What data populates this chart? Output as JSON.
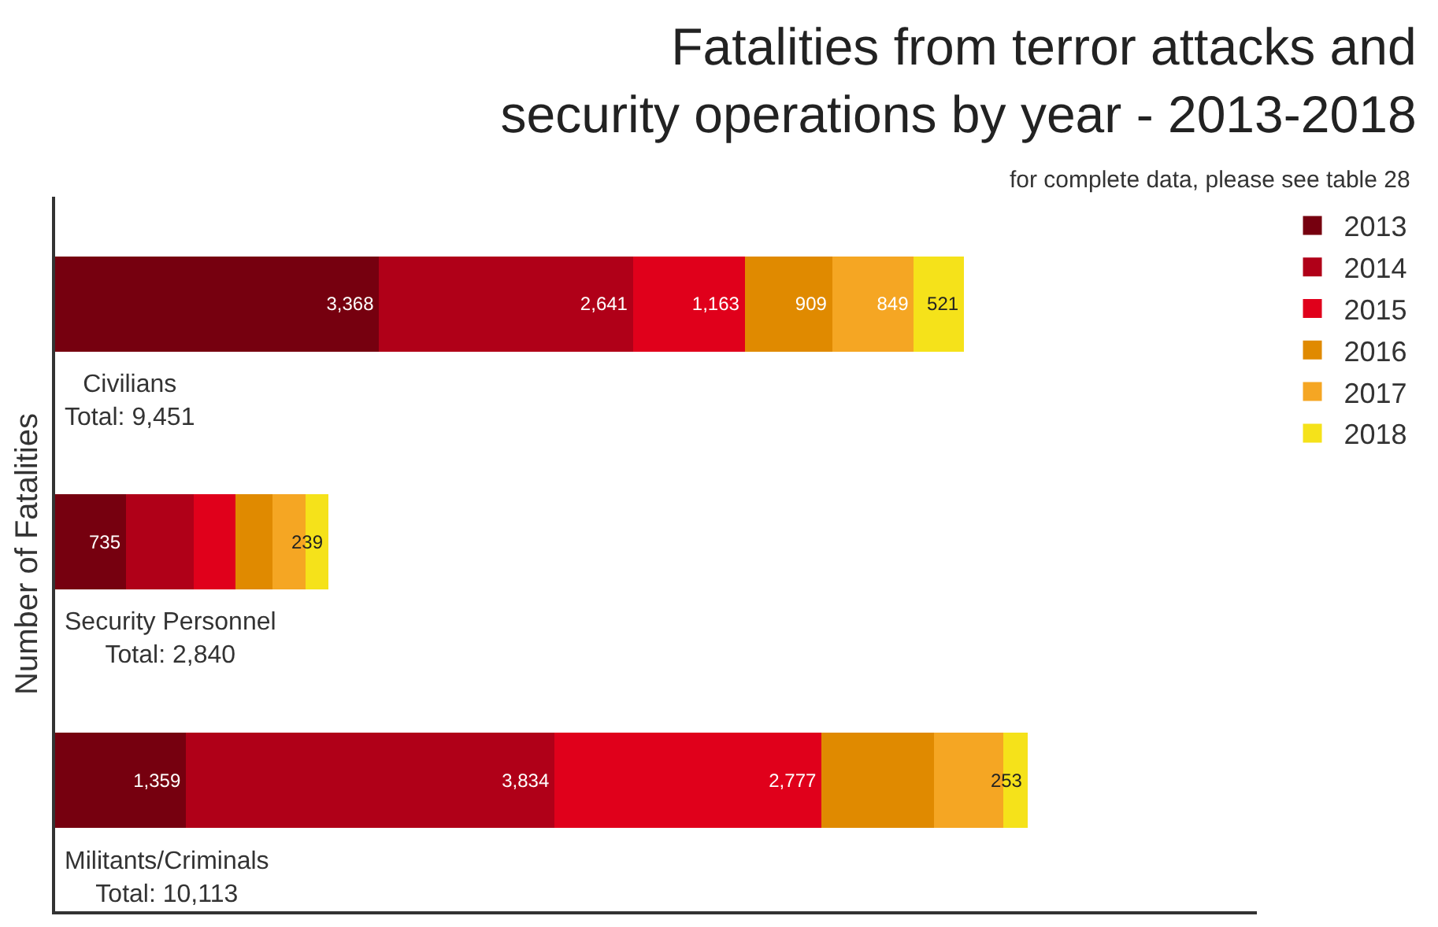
{
  "chart_data": {
    "type": "bar",
    "orientation": "horizontal",
    "stacked": true,
    "title": "Fatalities from terror attacks and security operations by year - 2013-2018",
    "subtitle": "for complete data, please see table 28",
    "ylabel": "Number of Fatalities",
    "categories": [
      "Civilians",
      "Security Personnel",
      "Militants/Criminals"
    ],
    "totals": [
      "Total: 9,451",
      "Total: 2,840",
      "Total: 10,113"
    ],
    "series": [
      {
        "name": "2013",
        "color": "#76000f",
        "values": [
          3368,
          735,
          1359
        ],
        "value_labels": [
          "3,368",
          "735",
          "1,359"
        ]
      },
      {
        "name": "2014",
        "color": "#b00018",
        "values": [
          2641,
          704,
          3834
        ],
        "value_labels": [
          "2,641",
          null,
          "3,834"
        ]
      },
      {
        "name": "2015",
        "color": "#e0001b",
        "values": [
          1163,
          440,
          2777
        ],
        "value_labels": [
          "1,163",
          null,
          "2,777"
        ]
      },
      {
        "name": "2016",
        "color": "#e08a00",
        "values": [
          909,
          380,
          1169
        ],
        "value_labels": [
          "909",
          null,
          null
        ]
      },
      {
        "name": "2017",
        "color": "#f5a623",
        "values": [
          849,
          342,
          721
        ],
        "value_labels": [
          "849",
          null,
          null
        ]
      },
      {
        "name": "2018",
        "color": "#f5e21a",
        "values": [
          521,
          239,
          253
        ],
        "value_labels": [
          "521",
          "239",
          "253"
        ]
      }
    ],
    "xlim": [
      0,
      12500
    ],
    "tick_labels": false,
    "grid": false,
    "legend": "top right"
  }
}
